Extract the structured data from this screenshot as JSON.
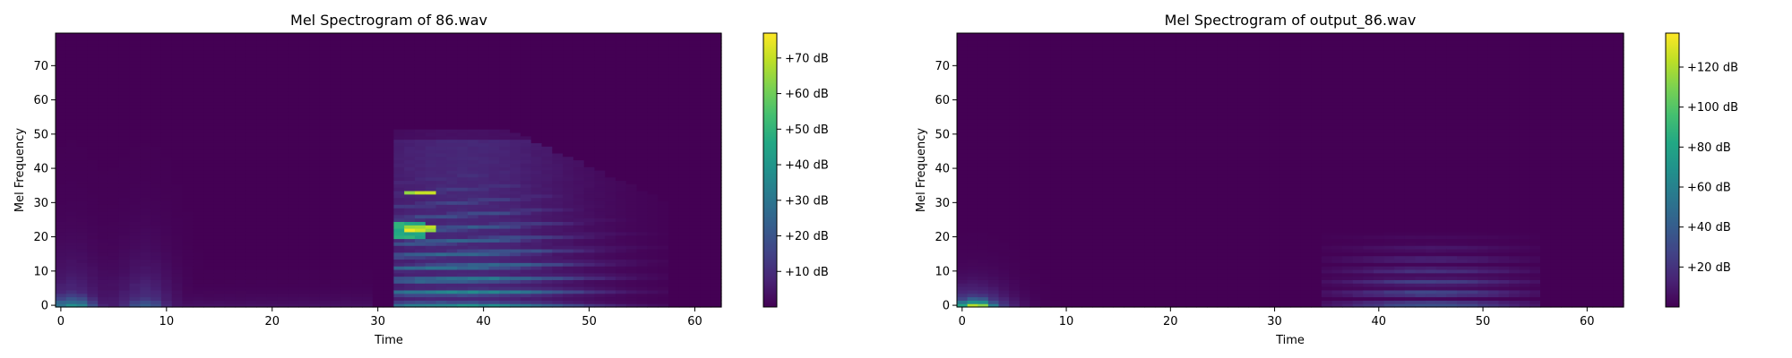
{
  "chart_data": [
    {
      "type": "heatmap",
      "title": "Mel Spectrogram of 86.wav",
      "xlabel": "Time",
      "ylabel": "Mel Frequency",
      "xlim": [
        -0.5,
        62.5
      ],
      "ylim": [
        -0.5,
        79.5
      ],
      "x_ticks": [
        "0",
        "10",
        "20",
        "30",
        "40",
        "50",
        "60"
      ],
      "y_ticks": [
        "0",
        "10",
        "20",
        "30",
        "40",
        "50",
        "60",
        "70"
      ],
      "colorbar": {
        "vmin": 0,
        "vmax": 77,
        "tick_values": [
          10,
          20,
          30,
          40,
          50,
          60,
          70
        ],
        "tick_labels": [
          "+10 dB",
          "+20 dB",
          "+30 dB",
          "+40 dB",
          "+50 dB",
          "+60 dB",
          "+70 dB"
        ]
      },
      "colormap": "viridis",
      "features": [
        {
          "region": "low bins 0-8, frames 0-3",
          "level_db": 40
        },
        {
          "region": "low bins 0-8, frames 6-9",
          "level_db": 42
        },
        {
          "region": "harmonic bands, frames 31-56, bins 2-48",
          "level_db": 45
        },
        {
          "region": "peak, frame 34, bins 22 and 33",
          "level_db": 77
        }
      ]
    },
    {
      "type": "heatmap",
      "title": "Mel Spectrogram of output_86.wav",
      "xlabel": "Time",
      "ylabel": "Mel Frequency",
      "xlim": [
        -0.5,
        63.5
      ],
      "ylim": [
        -0.5,
        79.5
      ],
      "x_ticks": [
        "0",
        "10",
        "20",
        "30",
        "40",
        "50",
        "60"
      ],
      "y_ticks": [
        "0",
        "10",
        "20",
        "30",
        "40",
        "50",
        "60",
        "70"
      ],
      "colorbar": {
        "vmin": 0,
        "vmax": 137,
        "tick_values": [
          20,
          40,
          60,
          80,
          100,
          120
        ],
        "tick_labels": [
          "+20 dB",
          "+40 dB",
          "+60 dB",
          "+80 dB",
          "+100 dB",
          "+120 dB"
        ]
      },
      "colormap": "viridis",
      "features": [
        {
          "region": "low bins 0-3, frames 0-3",
          "level_db": 137
        },
        {
          "region": "harmonic bands, frames 35-54, bins 2-20",
          "level_db": 50
        }
      ]
    }
  ],
  "colors": {
    "viridis_low": "#440154",
    "viridis_mid": "#21918c",
    "viridis_high": "#fde725"
  }
}
